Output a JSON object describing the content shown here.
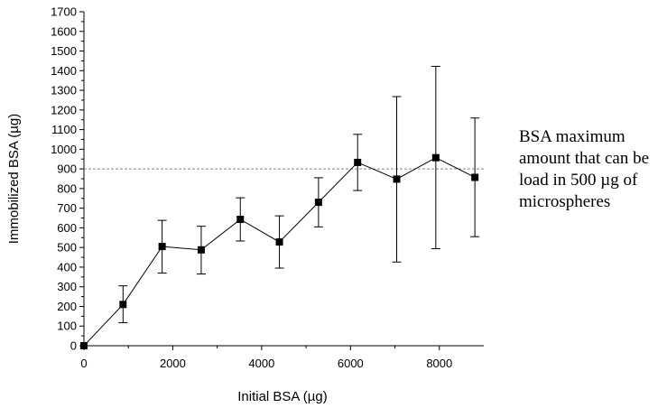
{
  "chart_data": {
    "type": "scatter",
    "title": "",
    "xlabel": "Initial BSA (µg)",
    "ylabel": "Immobilized BSA (µg)",
    "xlim": [
      0,
      9000
    ],
    "ylim": [
      0,
      1700
    ],
    "x_ticks": [
      0,
      2000,
      4000,
      6000,
      8000
    ],
    "y_ticks": [
      0,
      100,
      200,
      300,
      400,
      500,
      600,
      700,
      800,
      900,
      1000,
      1100,
      1200,
      1300,
      1400,
      1500,
      1600,
      1700
    ],
    "series": [
      {
        "name": "Immobilized BSA",
        "marker": "square",
        "connected": true,
        "x": [
          0,
          880,
          1760,
          2640,
          3520,
          4400,
          5280,
          6160,
          7040,
          7920,
          8800
        ],
        "y": [
          0,
          210,
          505,
          488,
          643,
          528,
          730,
          933,
          848,
          957,
          857
        ],
        "err_low": [
          0,
          93,
          135,
          123,
          110,
          133,
          125,
          143,
          422,
          463,
          302
        ],
        "err_high": [
          0,
          95,
          133,
          120,
          110,
          133,
          125,
          143,
          420,
          465,
          302
        ]
      }
    ],
    "reference_line": {
      "y": 900,
      "style": "dashed"
    },
    "annotation": {
      "lines": [
        "BSA maximum",
        "amount that can be",
        "load in 500 µg of",
        "microspheres"
      ]
    },
    "colors": {
      "data": "#000000",
      "reference": "#888888"
    }
  }
}
